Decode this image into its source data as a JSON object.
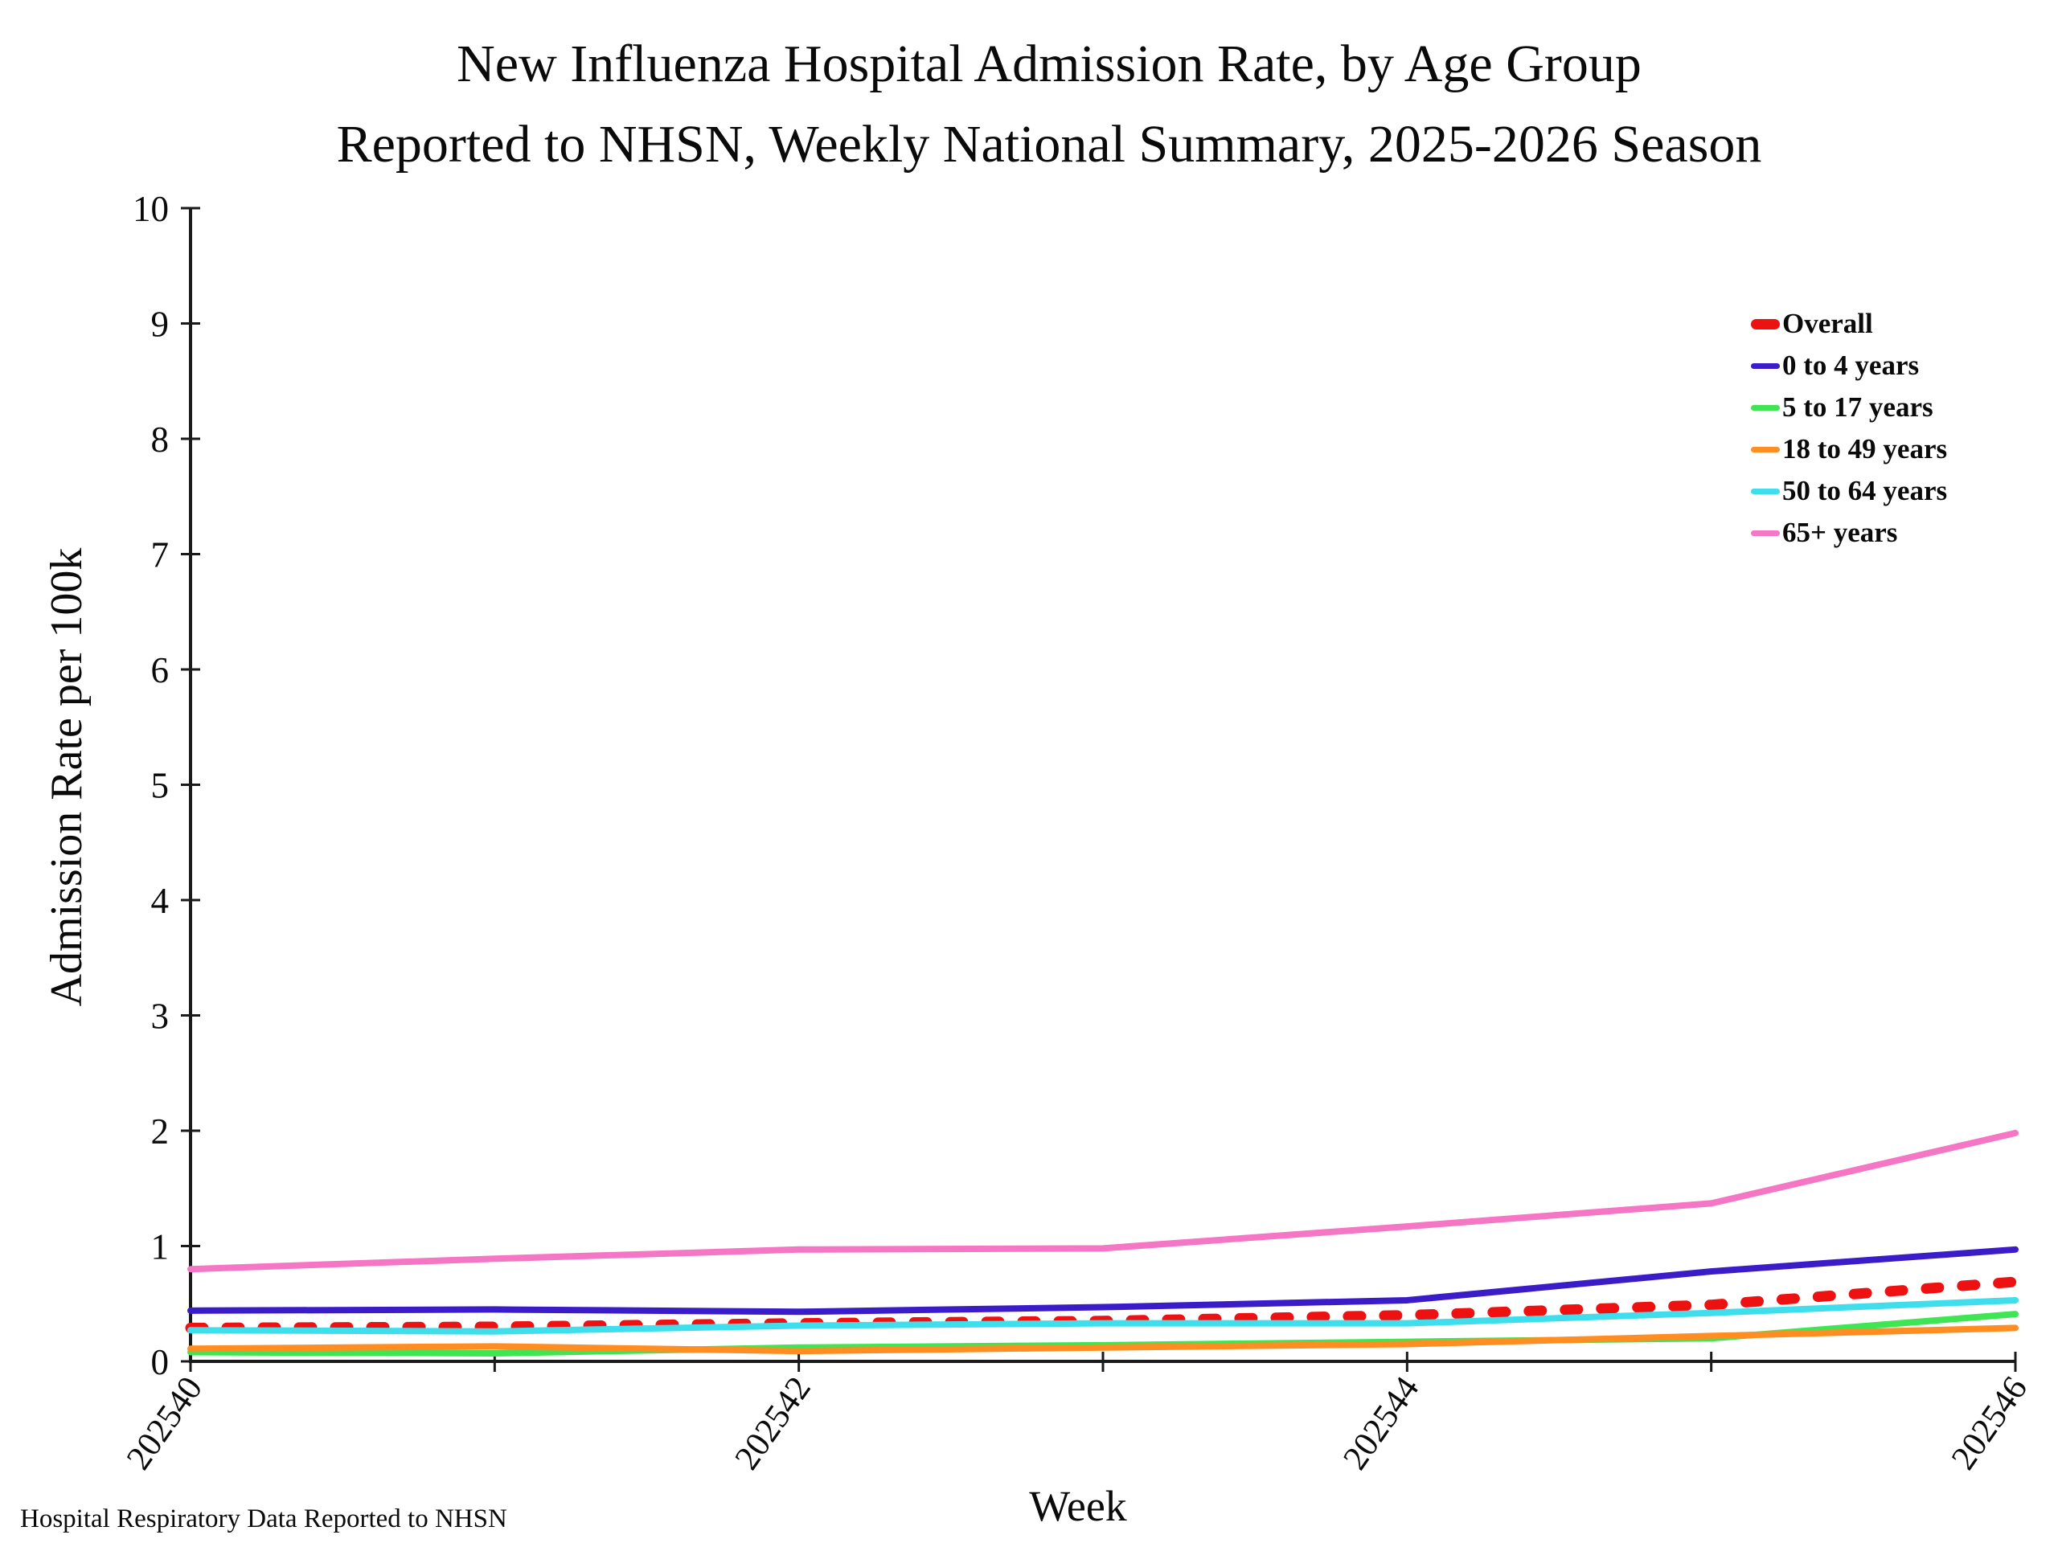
{
  "title": {
    "line1": "New Influenza Hospital Admission Rate, by Age Group",
    "line2": "Reported to NHSN, Weekly National Summary, 2025-2026 Season"
  },
  "footer": "Hospital Respiratory Data Reported to NHSN",
  "chart_data": {
    "type": "line",
    "x": [
      "202540",
      "202541",
      "202542",
      "202543",
      "202544",
      "202545",
      "202546"
    ],
    "x_labeled_ticks": [
      "202540",
      "202542",
      "202544",
      "202546"
    ],
    "xlabel": "Week",
    "ylabel": "Admission Rate per 100k",
    "ylim": [
      0,
      10
    ],
    "y_ticks": [
      0,
      1,
      2,
      3,
      4,
      5,
      6,
      7,
      8,
      9,
      10
    ],
    "grid": false,
    "legend_position": "upper right",
    "axis_color": "#1a1a1a",
    "series": [
      {
        "name": "Overall",
        "color": "#ee1111",
        "dashed": true,
        "values": [
          0.29,
          0.3,
          0.33,
          0.35,
          0.4,
          0.49,
          0.69
        ]
      },
      {
        "name": "0 to 4 years",
        "color": "#3a1cc8",
        "dashed": false,
        "values": [
          0.44,
          0.45,
          0.43,
          0.47,
          0.53,
          0.78,
          0.97
        ]
      },
      {
        "name": "5 to 17 years",
        "color": "#3fe553",
        "dashed": false,
        "values": [
          0.08,
          0.07,
          0.12,
          0.14,
          0.17,
          0.2,
          0.41
        ]
      },
      {
        "name": "18 to 49 years",
        "color": "#ff8d22",
        "dashed": false,
        "values": [
          0.11,
          0.13,
          0.09,
          0.12,
          0.15,
          0.22,
          0.29
        ]
      },
      {
        "name": "50 to 64 years",
        "color": "#3edeed",
        "dashed": false,
        "values": [
          0.27,
          0.26,
          0.31,
          0.33,
          0.33,
          0.42,
          0.53
        ]
      },
      {
        "name": "65+ years",
        "color": "#f476c5",
        "dashed": false,
        "values": [
          0.8,
          0.89,
          0.97,
          0.98,
          1.17,
          1.37,
          1.98
        ]
      }
    ]
  }
}
